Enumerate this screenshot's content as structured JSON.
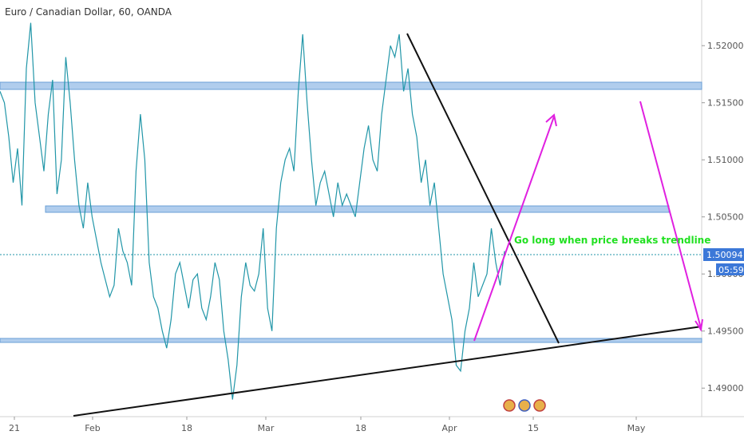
{
  "header": {
    "title": "Euro / Canadian Dollar, 60, OANDA"
  },
  "chart_data": {
    "type": "line",
    "title": "Euro / Canadian Dollar, 60, OANDA",
    "xlabel": "",
    "ylabel": "",
    "x_ticks": [
      "21",
      "Feb",
      "18",
      "Mar",
      "18",
      "Apr",
      "15",
      "May"
    ],
    "y_ticks": [
      "1.52000",
      "1.51500",
      "1.51000",
      "1.50500",
      "1.50000",
      "1.49500",
      "1.49000"
    ],
    "ylim": [
      1.4875,
      1.524
    ],
    "series": [
      {
        "values": [
          1.516,
          1.515,
          1.512,
          1.508,
          1.511,
          1.506,
          1.518,
          1.522,
          1.515,
          1.512,
          1.509,
          1.514,
          1.517,
          1.507,
          1.51,
          1.519,
          1.515,
          1.51,
          1.506,
          1.504,
          1.508,
          1.505,
          1.503,
          1.501,
          1.4995,
          1.498,
          1.499,
          1.504,
          1.502,
          1.501,
          1.499,
          1.509,
          1.514,
          1.51,
          1.501,
          1.498,
          1.497,
          1.495,
          1.4935,
          1.496,
          1.5,
          1.501,
          1.499,
          1.497,
          1.4995,
          1.5,
          1.497,
          1.496,
          1.498,
          1.501,
          1.4995,
          1.495,
          1.4925,
          1.489,
          1.492,
          1.498,
          1.501,
          1.499,
          1.4985,
          1.5,
          1.504,
          1.497,
          1.495,
          1.504,
          1.508,
          1.51,
          1.511,
          1.509,
          1.516,
          1.521,
          1.515,
          1.51,
          1.506,
          1.508,
          1.509,
          1.507,
          1.505,
          1.508,
          1.506,
          1.507,
          1.506,
          1.505,
          1.508,
          1.511,
          1.513,
          1.51,
          1.509,
          1.514,
          1.517,
          1.52,
          1.519,
          1.521,
          1.516,
          1.518,
          1.514,
          1.512,
          1.508,
          1.51,
          1.506,
          1.508,
          1.504,
          1.5,
          1.498,
          1.496,
          1.492,
          1.4915,
          1.495,
          1.497,
          1.501,
          1.498,
          1.499,
          1.5,
          1.504,
          1.501,
          1.499,
          1.502
        ]
      }
    ],
    "current_price": "1.50094",
    "countdown": "05:59",
    "horizontal_zones": [
      1.5163,
      1.5052,
      1.4931
    ],
    "annotation": "Go long when price breaks trendline",
    "colors": {
      "price_line": "#2196a8",
      "zone": "#8fb8e6",
      "trendline": "#111111",
      "arrow": "#e020e0",
      "annotation": "#22e022",
      "price_tag": "#3c78d8"
    }
  }
}
